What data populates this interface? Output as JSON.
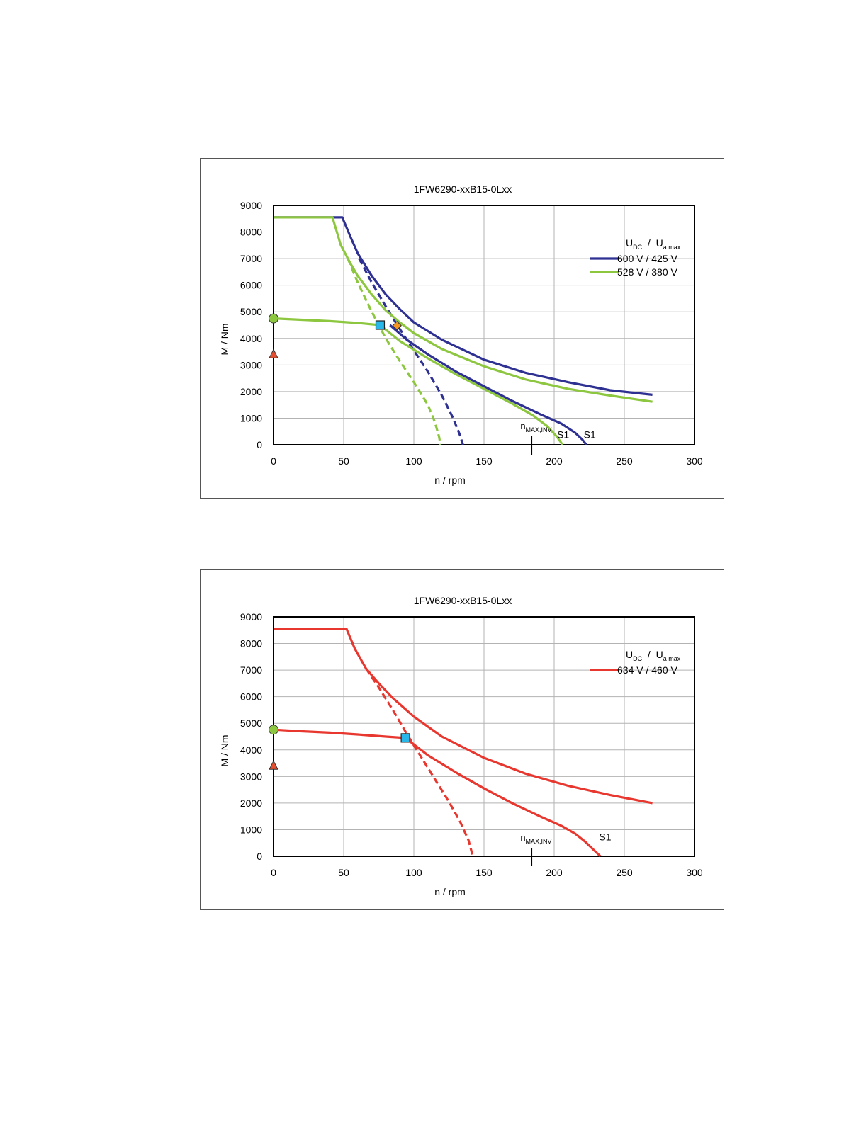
{
  "chart_data": [
    {
      "type": "line",
      "title": "1FW6290-xxB15-0Lxx",
      "xlabel": "n / rpm",
      "ylabel": "M / Nm",
      "xlim": [
        0,
        300
      ],
      "ylim": [
        0,
        9000
      ],
      "xticks": [
        0,
        50,
        100,
        150,
        200,
        250,
        300
      ],
      "yticks": [
        0,
        1000,
        2000,
        3000,
        4000,
        5000,
        6000,
        7000,
        8000,
        9000
      ],
      "grid": true,
      "legend": {
        "title_parts": [
          "U",
          "DC",
          "/",
          "U",
          "a max"
        ],
        "position": "right",
        "entries": [
          {
            "label": "600 V / 425 V",
            "color": "#2e3192"
          },
          {
            "label": "528 V / 380 V",
            "color": "#8dc63f"
          }
        ]
      },
      "nmax_inv": {
        "x": 184,
        "label": "n",
        "sub": "MAX,INV"
      },
      "s1_labels": [
        {
          "text": "S1",
          "x": 219,
          "y": 200,
          "series": "600 V / 425 V"
        },
        {
          "text": "S1",
          "x": 200,
          "y": 200,
          "series": "528 V / 380 V"
        }
      ],
      "series": [
        {
          "name": "600 V / 425 V",
          "color": "#2e3192",
          "style": "solid",
          "x": [
            0,
            49,
            55,
            60,
            70,
            80,
            90,
            100,
            120,
            150,
            180,
            210,
            240,
            270
          ],
          "y": [
            8550,
            8550,
            7800,
            7200,
            6350,
            5650,
            5100,
            4600,
            3950,
            3200,
            2700,
            2350,
            2050,
            1880
          ]
        },
        {
          "name": "600 V / 425 V",
          "color": "#2e3192",
          "style": "dashed",
          "x": [
            61,
            70,
            80,
            90,
            100,
            110,
            120,
            128,
            133,
            135
          ],
          "y": [
            7000,
            6100,
            5200,
            4350,
            3550,
            2750,
            1850,
            1000,
            350,
            0
          ]
        },
        {
          "name": "600 V / 425 V",
          "color": "#2e3192",
          "style": "solid",
          "x": [
            83,
            95,
            110,
            130,
            150,
            170,
            190,
            205,
            215,
            220,
            223
          ],
          "y": [
            4500,
            3950,
            3400,
            2750,
            2200,
            1650,
            1150,
            800,
            450,
            200,
            0
          ]
        },
        {
          "name": "528 V / 380 V",
          "color": "#8dc63f",
          "style": "solid",
          "x": [
            0,
            42,
            48,
            55,
            60,
            70,
            80,
            90,
            100,
            120,
            150,
            180,
            210,
            240,
            270
          ],
          "y": [
            8550,
            8550,
            7500,
            6800,
            6350,
            5650,
            5050,
            4600,
            4200,
            3600,
            2950,
            2450,
            2100,
            1850,
            1620
          ]
        },
        {
          "name": "528 V / 380 V",
          "color": "#8dc63f",
          "style": "dashed",
          "x": [
            53,
            60,
            70,
            80,
            90,
            100,
            110,
            115,
            118,
            119
          ],
          "y": [
            7000,
            6100,
            5000,
            4000,
            3150,
            2350,
            1500,
            850,
            300,
            0
          ]
        },
        {
          "name": "528 V / 380 V",
          "color": "#8dc63f",
          "style": "solid",
          "x": [
            0,
            20,
            40,
            60,
            76
          ],
          "y": [
            4750,
            4700,
            4650,
            4580,
            4500
          ]
        },
        {
          "name": "528 V / 380 V",
          "color": "#8dc63f",
          "style": "solid",
          "x": [
            76,
            90,
            110,
            130,
            150,
            170,
            185,
            195,
            202,
            206
          ],
          "y": [
            4500,
            3900,
            3250,
            2650,
            2100,
            1550,
            1100,
            700,
            300,
            0
          ]
        }
      ],
      "markers": [
        {
          "shape": "circle",
          "x": 0,
          "y": 4750,
          "color": "#8dc63f"
        },
        {
          "shape": "triangle",
          "x": 0,
          "y": 3400,
          "color": "#e84e2e"
        },
        {
          "shape": "square",
          "x": 76,
          "y": 4500,
          "color": "#29b6e8"
        },
        {
          "shape": "diamond",
          "x": 88,
          "y": 4480,
          "color": "#f7941d"
        }
      ]
    },
    {
      "type": "line",
      "title": "1FW6290-xxB15-0Lxx",
      "xlabel": "n / rpm",
      "ylabel": "M / Nm",
      "xlim": [
        0,
        300
      ],
      "ylim": [
        0,
        9000
      ],
      "xticks": [
        0,
        50,
        100,
        150,
        200,
        250,
        300
      ],
      "yticks": [
        0,
        1000,
        2000,
        3000,
        4000,
        5000,
        6000,
        7000,
        8000,
        9000
      ],
      "grid": true,
      "legend": {
        "title_parts": [
          "U",
          "DC",
          "/",
          "U",
          "a max"
        ],
        "position": "right",
        "entries": [
          {
            "label": "634 V / 460 V",
            "color": "#e8372e"
          }
        ]
      },
      "nmax_inv": {
        "x": 184,
        "label": "n",
        "sub": "MAX,INV"
      },
      "s1_labels": [
        {
          "text": "S1",
          "x": 230,
          "y": 550,
          "series": "634 V / 460 V"
        }
      ],
      "series": [
        {
          "name": "634 V / 460 V",
          "color": "#e8372e",
          "style": "solid",
          "x": [
            0,
            52,
            58,
            66,
            75,
            85,
            100,
            120,
            150,
            180,
            210,
            240,
            270
          ],
          "y": [
            8550,
            8550,
            7800,
            7050,
            6500,
            5950,
            5250,
            4500,
            3700,
            3100,
            2650,
            2300,
            2000
          ]
        },
        {
          "name": "634 V / 460 V",
          "color": "#e8372e",
          "style": "dashed",
          "x": [
            66,
            75,
            85,
            95,
            105,
            115,
            125,
            133,
            139,
            142
          ],
          "y": [
            7050,
            6350,
            5500,
            4600,
            3750,
            2900,
            2050,
            1300,
            600,
            0
          ]
        },
        {
          "name": "634 V / 460 V",
          "color": "#e8372e",
          "style": "solid",
          "x": [
            0,
            20,
            40,
            60,
            80,
            94
          ],
          "y": [
            4760,
            4700,
            4650,
            4580,
            4500,
            4450
          ]
        },
        {
          "name": "634 V / 460 V",
          "color": "#e8372e",
          "style": "solid",
          "x": [
            94,
            110,
            130,
            150,
            170,
            190,
            205,
            215,
            222,
            228,
            233
          ],
          "y": [
            4450,
            3800,
            3150,
            2550,
            2000,
            1500,
            1150,
            850,
            550,
            250,
            0
          ]
        }
      ],
      "markers": [
        {
          "shape": "circle",
          "x": 0,
          "y": 4760,
          "color": "#8dc63f"
        },
        {
          "shape": "triangle",
          "x": 0,
          "y": 3400,
          "color": "#e84e2e"
        },
        {
          "shape": "square",
          "x": 94,
          "y": 4450,
          "color": "#29b6e8"
        }
      ]
    }
  ]
}
